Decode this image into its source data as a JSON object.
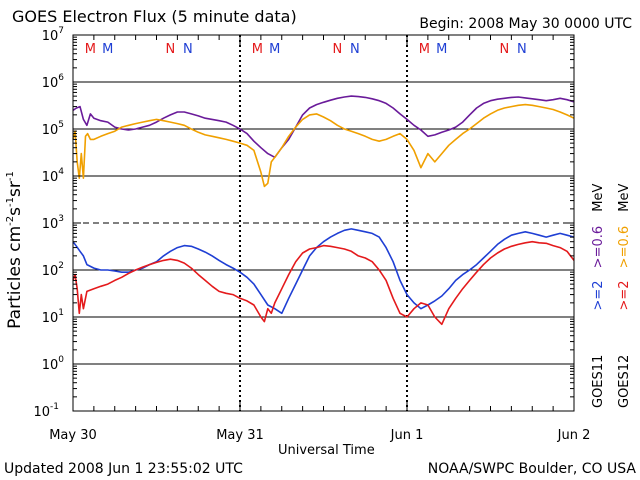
{
  "chart_data": {
    "type": "line",
    "title": "GOES Electron Flux (5 minute data)",
    "begin_label": "Begin: 2008 May 30 0000 UTC",
    "ylabel": "Particles cm-2s-1sr-1",
    "ylabel_parts": {
      "base": "Particles cm",
      "exp1": "-2",
      "mid": "s",
      "exp2": "-1",
      "mid2": "sr",
      "exp3": "-1"
    },
    "xlabel": "Universal Time",
    "yscale": "log",
    "ylim": [
      0.1,
      10000000
    ],
    "y_ticks": [
      {
        "base": "10",
        "exp": "7"
      },
      {
        "base": "10",
        "exp": "6"
      },
      {
        "base": "10",
        "exp": "5"
      },
      {
        "base": "10",
        "exp": "4"
      },
      {
        "base": "10",
        "exp": "3"
      },
      {
        "base": "10",
        "exp": "2"
      },
      {
        "base": "10",
        "exp": "1"
      },
      {
        "base": "10",
        "exp": "0"
      },
      {
        "base": "10",
        "exp": "-1"
      }
    ],
    "x_ticks": [
      "May 30",
      "May 31",
      "Jun 1",
      "Jun 2"
    ],
    "xlim_hours": [
      0,
      72
    ],
    "grid_horizontal": true,
    "grid_vertical_days": true,
    "mn_markers": [
      {
        "label": "M",
        "hour": 2.5,
        "color": "#e41a1c"
      },
      {
        "label": "M",
        "hour": 5.0,
        "color": "#1f3fd4"
      },
      {
        "label": "N",
        "hour": 14.0,
        "color": "#e41a1c"
      },
      {
        "label": "N",
        "hour": 16.5,
        "color": "#1f3fd4"
      },
      {
        "label": "M",
        "hour": 26.5,
        "color": "#e41a1c"
      },
      {
        "label": "M",
        "hour": 29.0,
        "color": "#1f3fd4"
      },
      {
        "label": "N",
        "hour": 38.0,
        "color": "#e41a1c"
      },
      {
        "label": "N",
        "hour": 40.5,
        "color": "#1f3fd4"
      },
      {
        "label": "M",
        "hour": 50.5,
        "color": "#e41a1c"
      },
      {
        "label": "M",
        "hour": 53.0,
        "color": "#1f3fd4"
      },
      {
        "label": "N",
        "hour": 62.0,
        "color": "#e41a1c"
      },
      {
        "label": "N",
        "hour": 64.5,
        "color": "#1f3fd4"
      }
    ],
    "legend": [
      {
        "text": ">=2",
        "color": "#1f3fd4",
        "group": "GOES11"
      },
      {
        "text": ">=0.6",
        "color": "#6a1b9a",
        "group": "GOES11"
      },
      {
        "text": "MeV",
        "color": "#000000",
        "group": "GOES11"
      },
      {
        "text": ">=2",
        "color": "#e41a1c",
        "group": "GOES12"
      },
      {
        "text": ">=0.6",
        "color": "#f0a000",
        "group": "GOES12"
      },
      {
        "text": "MeV",
        "color": "#000000",
        "group": "GOES12"
      }
    ],
    "legend_satellites": [
      "GOES11",
      "GOES12"
    ],
    "series": [
      {
        "name": "GOES11 >=0.6 MeV",
        "color": "#6a1b9a",
        "x": [
          0,
          0.5,
          1,
          1.5,
          2,
          2.5,
          3,
          4,
          5,
          6,
          7,
          8,
          9,
          10,
          11,
          12,
          13,
          14,
          15,
          16,
          17,
          18,
          19,
          20,
          21,
          22,
          23,
          24,
          25,
          26,
          27,
          28,
          29,
          30,
          31,
          32,
          33,
          34,
          35,
          36,
          37,
          38,
          39,
          40,
          41,
          42,
          43,
          44,
          45,
          46,
          47,
          48,
          49,
          50,
          51,
          52,
          53,
          54,
          55,
          56,
          57,
          58,
          59,
          60,
          61,
          62,
          63,
          64,
          65,
          66,
          67,
          68,
          69,
          70,
          71,
          72
        ],
        "y": [
          250000,
          280000,
          300000,
          160000,
          120000,
          210000,
          170000,
          150000,
          140000,
          110000,
          100000,
          95000,
          100000,
          110000,
          120000,
          140000,
          170000,
          200000,
          230000,
          230000,
          210000,
          190000,
          170000,
          160000,
          150000,
          140000,
          120000,
          100000,
          80000,
          55000,
          40000,
          30000,
          25000,
          40000,
          60000,
          110000,
          200000,
          280000,
          330000,
          370000,
          410000,
          450000,
          480000,
          500000,
          490000,
          470000,
          440000,
          400000,
          350000,
          280000,
          210000,
          160000,
          120000,
          95000,
          70000,
          75000,
          85000,
          95000,
          110000,
          140000,
          200000,
          280000,
          350000,
          400000,
          430000,
          450000,
          470000,
          480000,
          460000,
          440000,
          420000,
          400000,
          420000,
          450000,
          420000,
          380000
        ]
      },
      {
        "name": "GOES12 >=0.6 MeV",
        "color": "#f0a000",
        "x": [
          0,
          0.3,
          0.6,
          0.9,
          1.2,
          1.5,
          1.8,
          2.1,
          2.5,
          3,
          4,
          5,
          6,
          7,
          8,
          9,
          10,
          11,
          12,
          13,
          14,
          15,
          16,
          17,
          18,
          19,
          20,
          21,
          22,
          23,
          24,
          25,
          26,
          27,
          27.5,
          28,
          28.5,
          29,
          30,
          31,
          32,
          33,
          34,
          35,
          36,
          37,
          38,
          39,
          40,
          41,
          42,
          43,
          44,
          45,
          46,
          47,
          48,
          49,
          50,
          51,
          52,
          53,
          54,
          55,
          56,
          57,
          58,
          59,
          60,
          61,
          62,
          63,
          64,
          65,
          66,
          67,
          68,
          69,
          70,
          71,
          72
        ],
        "y": [
          60000,
          90000,
          20000,
          9000,
          30000,
          9000,
          70000,
          80000,
          60000,
          60000,
          70000,
          80000,
          90000,
          110000,
          120000,
          130000,
          140000,
          150000,
          160000,
          150000,
          140000,
          130000,
          120000,
          100000,
          85000,
          75000,
          70000,
          65000,
          60000,
          55000,
          50000,
          45000,
          35000,
          12000,
          6000,
          7000,
          20000,
          25000,
          40000,
          70000,
          110000,
          160000,
          200000,
          210000,
          180000,
          150000,
          120000,
          100000,
          90000,
          80000,
          70000,
          60000,
          55000,
          60000,
          70000,
          80000,
          60000,
          35000,
          15000,
          30000,
          20000,
          30000,
          45000,
          60000,
          80000,
          100000,
          130000,
          170000,
          210000,
          250000,
          280000,
          300000,
          320000,
          330000,
          320000,
          300000,
          280000,
          260000,
          230000,
          200000,
          170000
        ]
      },
      {
        "name": "GOES11 >=2 MeV",
        "color": "#1f3fd4",
        "x": [
          0,
          0.5,
          1,
          1.5,
          2,
          3,
          4,
          5,
          6,
          7,
          8,
          9,
          10,
          11,
          12,
          13,
          14,
          15,
          16,
          17,
          18,
          19,
          20,
          21,
          22,
          23,
          24,
          25,
          26,
          27,
          28,
          29,
          30,
          31,
          32,
          33,
          34,
          35,
          36,
          37,
          38,
          39,
          40,
          41,
          42,
          43,
          44,
          45,
          46,
          47,
          48,
          49,
          50,
          51,
          52,
          53,
          54,
          55,
          56,
          57,
          58,
          59,
          60,
          61,
          62,
          63,
          64,
          65,
          66,
          67,
          68,
          69,
          70,
          71,
          72
        ],
        "y": [
          400,
          320,
          250,
          200,
          130,
          110,
          100,
          100,
          95,
          90,
          90,
          100,
          110,
          130,
          150,
          200,
          250,
          300,
          330,
          320,
          280,
          240,
          200,
          160,
          130,
          110,
          90,
          70,
          50,
          30,
          18,
          15,
          12,
          25,
          50,
          100,
          200,
          300,
          400,
          500,
          600,
          700,
          750,
          700,
          650,
          600,
          500,
          300,
          150,
          60,
          30,
          20,
          15,
          18,
          22,
          28,
          40,
          60,
          80,
          100,
          130,
          180,
          250,
          350,
          450,
          550,
          600,
          650,
          600,
          550,
          500,
          550,
          600,
          550,
          500
        ]
      },
      {
        "name": "GOES12 >=2 MeV",
        "color": "#e41a1c",
        "x": [
          0,
          0.3,
          0.6,
          0.9,
          1.2,
          1.5,
          2,
          3,
          4,
          5,
          6,
          7,
          8,
          9,
          10,
          11,
          12,
          13,
          14,
          15,
          16,
          17,
          18,
          19,
          20,
          21,
          22,
          23,
          24,
          25,
          26,
          27,
          27.5,
          28,
          28.5,
          29,
          30,
          31,
          32,
          33,
          34,
          35,
          36,
          37,
          38,
          39,
          40,
          41,
          42,
          43,
          44,
          45,
          46,
          47,
          48,
          49,
          50,
          51,
          52,
          53,
          54,
          55,
          56,
          57,
          58,
          59,
          60,
          61,
          62,
          63,
          64,
          65,
          66,
          67,
          68,
          69,
          70,
          71,
          72
        ],
        "y": [
          60,
          80,
          40,
          12,
          30,
          15,
          35,
          40,
          45,
          50,
          60,
          70,
          85,
          100,
          115,
          130,
          145,
          160,
          170,
          160,
          140,
          110,
          80,
          60,
          45,
          35,
          32,
          30,
          25,
          22,
          18,
          10,
          8,
          15,
          12,
          20,
          40,
          80,
          150,
          230,
          280,
          300,
          330,
          320,
          300,
          280,
          250,
          200,
          180,
          150,
          100,
          60,
          25,
          12,
          10,
          15,
          20,
          18,
          10,
          7,
          15,
          25,
          40,
          60,
          90,
          130,
          180,
          230,
          280,
          320,
          350,
          380,
          400,
          380,
          370,
          330,
          300,
          250,
          160
        ]
      }
    ]
  },
  "footer": {
    "updated": "Updated 2008 Jun  1 23:55:02 UTC",
    "credit": "NOAA/SWPC Boulder, CO USA"
  }
}
